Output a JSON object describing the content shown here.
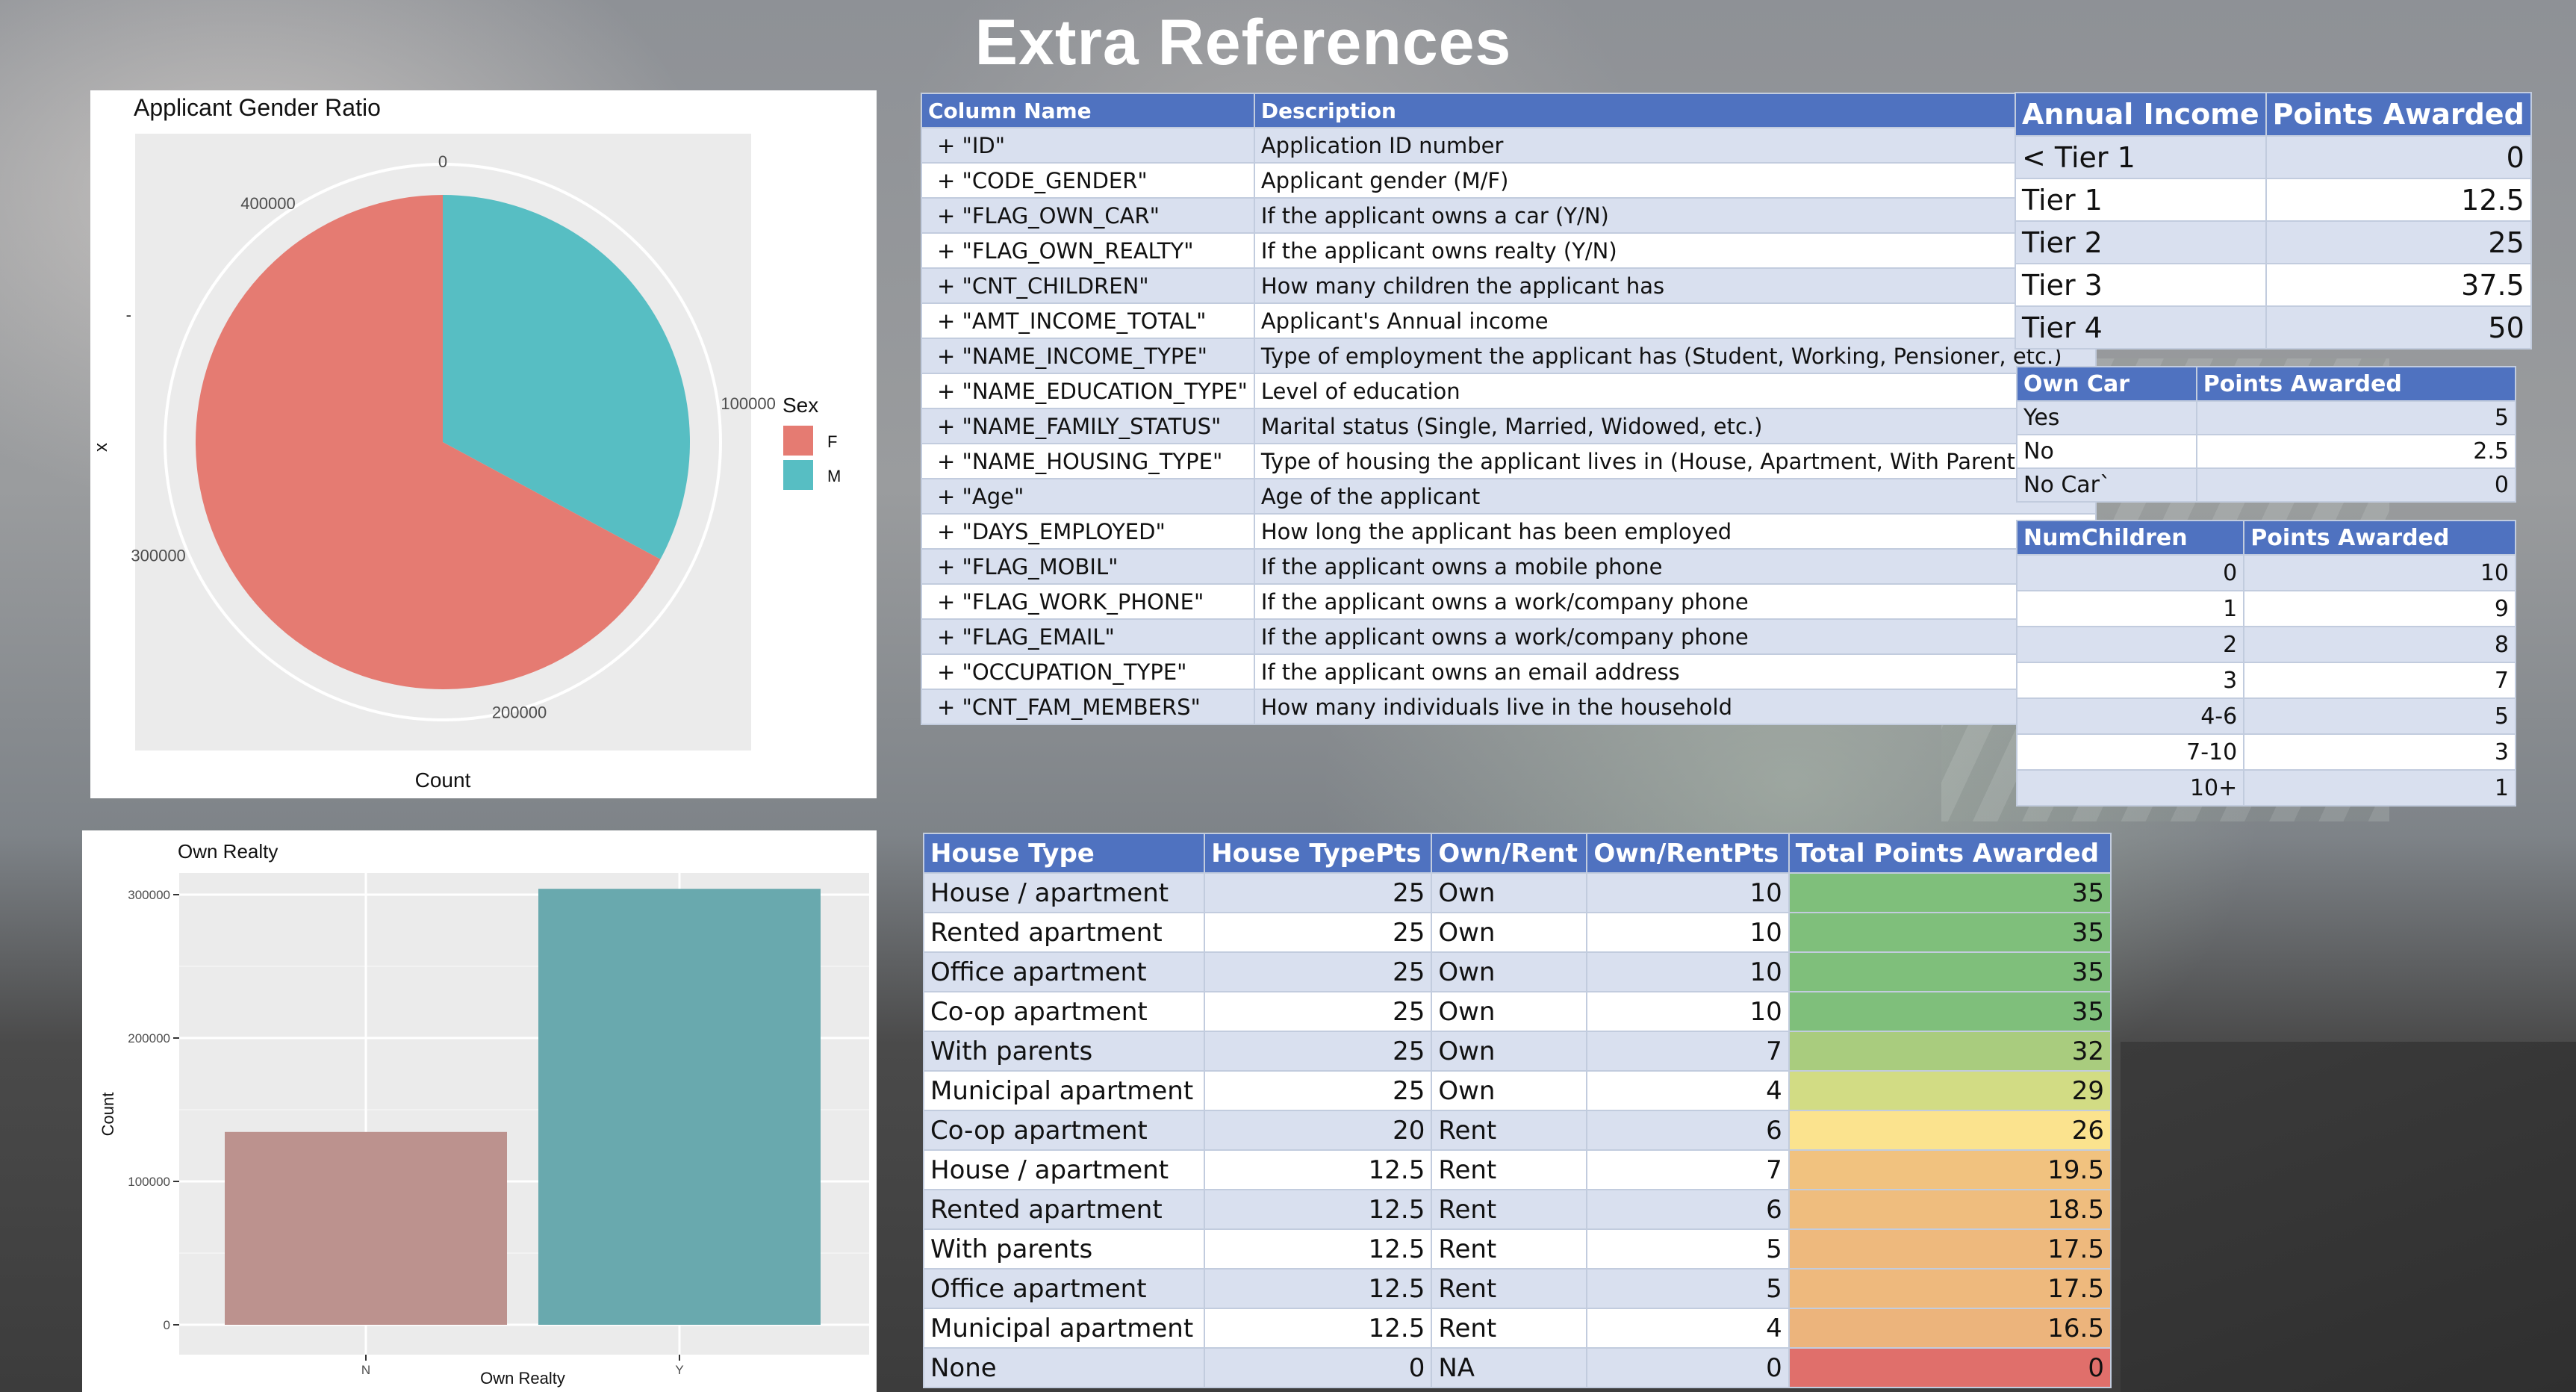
{
  "title": "Extra References",
  "pie_chart": {
    "chart_data": {
      "type": "pie",
      "title": "Applicant Gender Ratio",
      "xlabel": "Count",
      "ylabel": "x",
      "y_tick": "-",
      "legend_title": "Sex",
      "legend_position": "right",
      "radial_ticks": [
        "0",
        "100000",
        "200000",
        "300000",
        "400000"
      ],
      "slices": [
        {
          "label": "F",
          "value": 294440,
          "color": "#e57b72"
        },
        {
          "label": "M",
          "value": 144117,
          "color": "#57bec3"
        }
      ],
      "total": 438557
    }
  },
  "bar_chart": {
    "chart_data": {
      "type": "bar",
      "title": "Own Realty",
      "xlabel": "Own Realty",
      "ylabel": "Count",
      "categories": [
        "N",
        "Y"
      ],
      "values": [
        134483,
        304074
      ],
      "colors": [
        "#bc928e",
        "#69a9ae"
      ],
      "yticks": [
        0,
        100000,
        200000,
        300000
      ],
      "ytick_labels": [
        "0",
        "100000",
        "200000",
        "300000"
      ],
      "ylim": [
        0,
        320000
      ]
    }
  },
  "dictionary": {
    "headers": [
      "Column Name",
      "Description"
    ],
    "rows": [
      [
        "+ \"ID\"",
        "Application ID number"
      ],
      [
        "+ \"CODE_GENDER\"",
        "Applicant gender (M/F)"
      ],
      [
        "+ \"FLAG_OWN_CAR\"",
        "If the applicant owns a car (Y/N)"
      ],
      [
        "+ \"FLAG_OWN_REALTY\"",
        "If the applicant owns realty (Y/N)"
      ],
      [
        "+ \"CNT_CHILDREN\"",
        "How many children the applicant has"
      ],
      [
        "+ \"AMT_INCOME_TOTAL\"",
        "Applicant's Annual income"
      ],
      [
        "+ \"NAME_INCOME_TYPE\"",
        "Type of employment the applicant has (Student, Working, Pensioner, etc.)"
      ],
      [
        "+ \"NAME_EDUCATION_TYPE\"",
        "Level of education"
      ],
      [
        "+ \"NAME_FAMILY_STATUS\"",
        "Marital status (Single, Married, Widowed, etc.)"
      ],
      [
        "+ \"NAME_HOUSING_TYPE\"",
        "Type of housing the applicant lives in (House, Apartment, With Parents, etc.)"
      ],
      [
        "+ \"Age\"",
        "Age of the applicant"
      ],
      [
        "+ \"DAYS_EMPLOYED\"",
        "How long the applicant has been employed"
      ],
      [
        "+ \"FLAG_MOBIL\"",
        "If the applicant owns a mobile phone"
      ],
      [
        "+ \"FLAG_WORK_PHONE\"",
        "If the applicant owns a work/company phone"
      ],
      [
        "+ \"FLAG_EMAIL\"",
        "If the applicant owns a work/company phone"
      ],
      [
        "+ \"OCCUPATION_TYPE\"",
        "If the applicant owns an email address"
      ],
      [
        "+ \"CNT_FAM_MEMBERS\"",
        "How many individuals live in the household"
      ]
    ]
  },
  "income": {
    "headers": [
      "Annual Income",
      "Points Awarded"
    ],
    "rows": [
      [
        "< Tier 1",
        "0"
      ],
      [
        "Tier 1",
        "12.5"
      ],
      [
        "Tier 2",
        "25"
      ],
      [
        "Tier 3",
        "37.5"
      ],
      [
        "Tier 4",
        "50"
      ]
    ]
  },
  "car": {
    "headers": [
      "Own Car",
      "Points Awarded"
    ],
    "rows": [
      [
        "Yes",
        "5"
      ],
      [
        "No",
        "2.5"
      ],
      [
        "No Car`",
        "0"
      ]
    ]
  },
  "children": {
    "headers": [
      "NumChildren",
      "Points Awarded"
    ],
    "rows": [
      [
        "0",
        "10"
      ],
      [
        "1",
        "9"
      ],
      [
        "2",
        "8"
      ],
      [
        "3",
        "7"
      ],
      [
        "4-6",
        "5"
      ],
      [
        "7-10",
        "3"
      ],
      [
        "10+",
        "1"
      ]
    ]
  },
  "housing": {
    "headers": [
      "House Type",
      "House TypePts",
      "Own/Rent",
      "Own/RentPts",
      "Total Points Awarded"
    ],
    "rows": [
      [
        "House / apartment",
        "25",
        "Own",
        "10",
        "35"
      ],
      [
        "Rented apartment",
        "25",
        "Own",
        "10",
        "35"
      ],
      [
        "Office apartment",
        "25",
        "Own",
        "10",
        "35"
      ],
      [
        "Co-op apartment",
        "25",
        "Own",
        "10",
        "35"
      ],
      [
        "With parents",
        "25",
        "Own",
        "7",
        "32"
      ],
      [
        "Municipal apartment",
        "25",
        "Own",
        "4",
        "29"
      ],
      [
        "Co-op apartment",
        "20",
        "Rent",
        "6",
        "26"
      ],
      [
        "House / apartment",
        "12.5",
        "Rent",
        "7",
        "19.5"
      ],
      [
        "Rented apartment",
        "12.5",
        "Rent",
        "6",
        "18.5"
      ],
      [
        "With parents",
        "12.5",
        "Rent",
        "5",
        "17.5"
      ],
      [
        "Office apartment",
        "12.5",
        "Rent",
        "5",
        "17.5"
      ],
      [
        "Municipal apartment",
        "12.5",
        "Rent",
        "4",
        "16.5"
      ],
      [
        "None",
        "0",
        "NA",
        "0",
        "0"
      ]
    ],
    "total_colors": [
      "#7fbf7b",
      "#7fbf7b",
      "#7fbf7b",
      "#7fbf7b",
      "#a9cc7e",
      "#d2dc84",
      "#fbe38e",
      "#f1c27f",
      "#efbd7e",
      "#eeb97d",
      "#eeb97d",
      "#ecb47c",
      "#e06f6b"
    ]
  }
}
